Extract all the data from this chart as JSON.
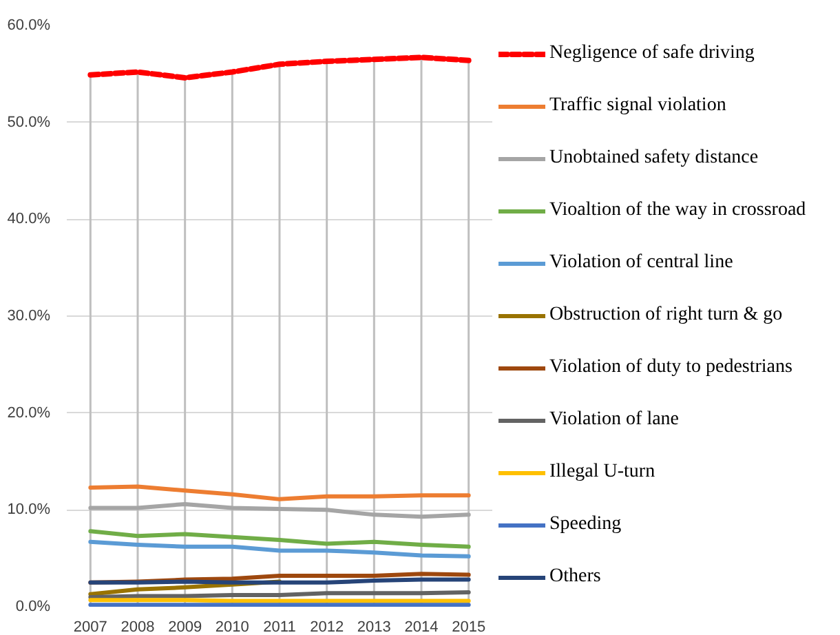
{
  "chart_data": {
    "type": "line",
    "categories": [
      "2007",
      "2008",
      "2009",
      "2010",
      "2011",
      "2012",
      "2013",
      "2014",
      "2015"
    ],
    "ylim": [
      0,
      60
    ],
    "yticks": [
      {
        "value": 0,
        "label": "0.0%"
      },
      {
        "value": 10,
        "label": "10.0%"
      },
      {
        "value": 20,
        "label": "20.0%"
      },
      {
        "value": 30,
        "label": "30.0%"
      },
      {
        "value": 40,
        "label": "40.0%"
      },
      {
        "value": 50,
        "label": "50.0%"
      },
      {
        "value": 60,
        "label": "60.0%"
      }
    ],
    "grid": true,
    "legend": "right",
    "line_style": "solid",
    "series": [
      {
        "name": "Negligence of safe driving",
        "color": "#ff0000",
        "line_style": "dashed",
        "values": [
          54.9,
          55.2,
          54.6,
          55.2,
          56.0,
          56.3,
          56.5,
          56.7,
          56.4
        ]
      },
      {
        "name": "Traffic signal violation",
        "color": "#ed7d31",
        "values": [
          12.3,
          12.4,
          12.0,
          11.6,
          11.1,
          11.4,
          11.4,
          11.5,
          11.5
        ]
      },
      {
        "name": "Unobtained safety distance",
        "color": "#a5a5a5",
        "values": [
          10.2,
          10.2,
          10.6,
          10.2,
          10.1,
          10.0,
          9.5,
          9.3,
          9.5
        ]
      },
      {
        "name": "Vioaltion of the way in crossroad",
        "color": "#70ad47",
        "values": [
          7.8,
          7.3,
          7.5,
          7.2,
          6.9,
          6.5,
          6.7,
          6.4,
          6.2
        ]
      },
      {
        "name": "Violation of central line",
        "color": "#5b9bd5",
        "values": [
          6.7,
          6.4,
          6.2,
          6.2,
          5.8,
          5.8,
          5.6,
          5.3,
          5.2
        ]
      },
      {
        "name": "Obstruction of right turn & go",
        "color": "#997300",
        "values": [
          1.3,
          1.8,
          2.0,
          2.3,
          2.6,
          null,
          null,
          null,
          null
        ]
      },
      {
        "name": "Violation of duty to pedestrians",
        "color": "#9e480e",
        "values": [
          2.5,
          2.6,
          2.8,
          2.9,
          3.2,
          3.2,
          3.2,
          3.4,
          3.3
        ]
      },
      {
        "name": "Violation of lane",
        "color": "#636363",
        "values": [
          1.0,
          1.1,
          1.1,
          1.2,
          1.2,
          1.4,
          1.4,
          1.4,
          1.5
        ]
      },
      {
        "name": "Illegal U-turn",
        "color": "#ffc000",
        "values": [
          0.7,
          0.7,
          0.7,
          0.6,
          0.6,
          0.6,
          0.6,
          0.6,
          0.6
        ]
      },
      {
        "name": "Speeding",
        "color": "#4472c4",
        "values": [
          0.2,
          0.2,
          0.2,
          0.2,
          0.2,
          0.2,
          0.2,
          0.2,
          0.2
        ]
      },
      {
        "name": "Others",
        "color": "#264478",
        "values": [
          2.5,
          2.5,
          2.6,
          2.5,
          2.5,
          2.5,
          2.7,
          2.8,
          2.8
        ]
      }
    ]
  }
}
